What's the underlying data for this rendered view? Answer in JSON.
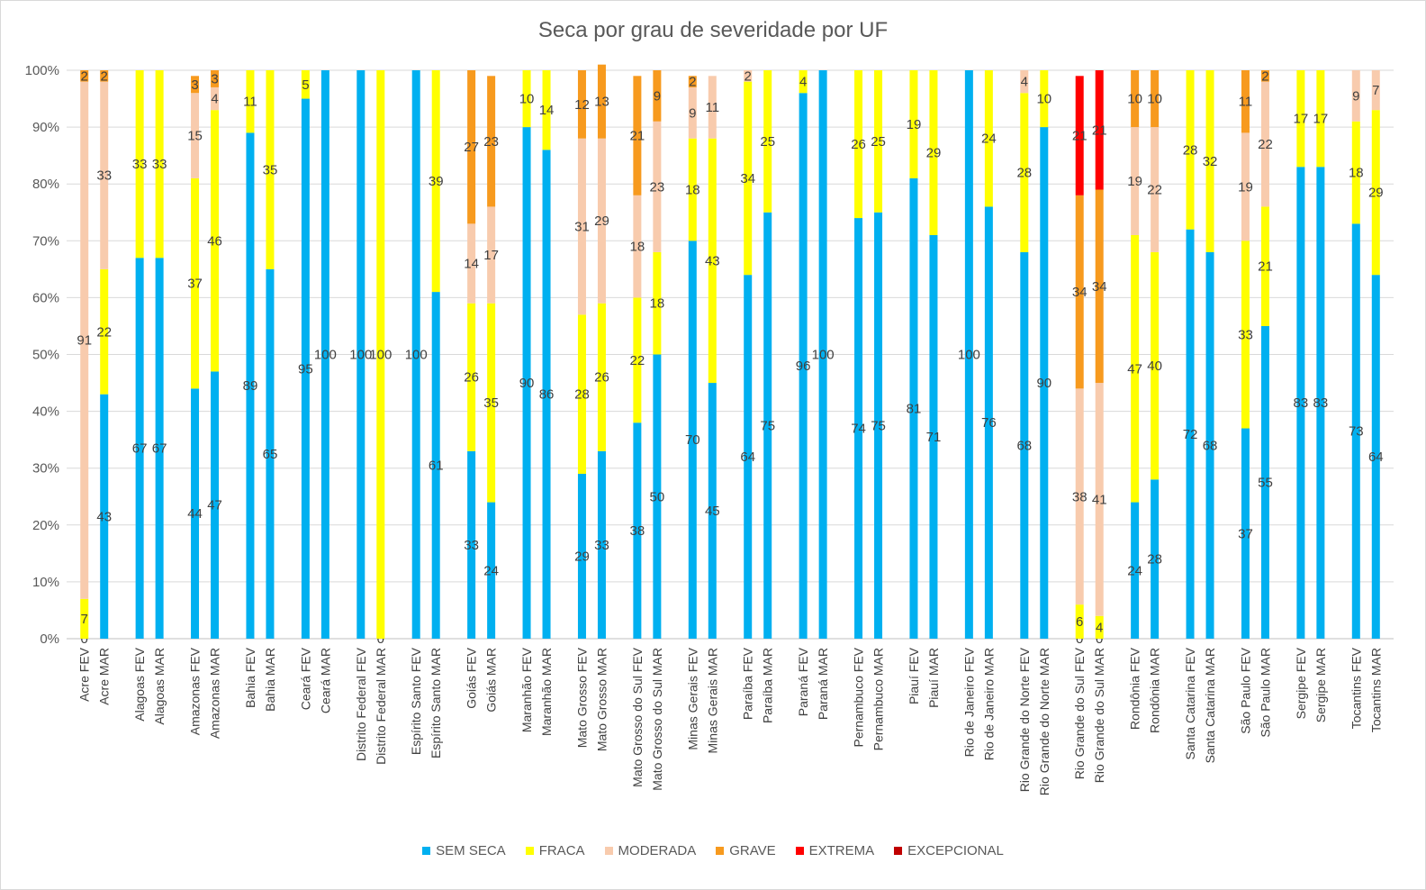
{
  "chart_data": {
    "type": "bar",
    "stacked": true,
    "title": "Seca por grau de severidade por UF",
    "xlabel": "",
    "ylabel": "",
    "ylim": [
      0,
      100
    ],
    "y_ticks": [
      "0%",
      "10%",
      "20%",
      "30%",
      "40%",
      "50%",
      "60%",
      "70%",
      "80%",
      "90%",
      "100%"
    ],
    "grid": true,
    "legend_position": "bottom",
    "categories": [
      "Acre FEV",
      "Acre MAR",
      "Alagoas FEV",
      "Alagoas MAR",
      "Amazonas FEV",
      "Amazonas MAR",
      "Bahia FEV",
      "Bahia MAR",
      "Ceará FEV",
      "Ceará MAR",
      "Distrito Federal FEV",
      "Distrito Federal MAR",
      "Espírito Santo FEV",
      "Espírito Santo MAR",
      "Goiás FEV",
      "Goiás MAR",
      "Maranhão FEV",
      "Maranhão MAR",
      "Mato Grosso FEV",
      "Mato Grosso MAR",
      "Mato Grosso do Sul FEV",
      "Mato Grosso do Sul MAR",
      "Minas Gerais FEV",
      "Minas Gerais MAR",
      "Paraíba FEV",
      "Paraíba MAR",
      "Paraná FEV",
      "Paraná MAR",
      "Pernambuco FEV",
      "Pernambuco MAR",
      "Piauí FEV",
      "Piauí MAR",
      "Rio de Janeiro FEV",
      "Rio de Janeiro MAR",
      "Rio Grande do Norte FEV",
      "Rio Grande do Norte MAR",
      "Rio Grande do Sul FEV",
      "Rio Grande do Sul MAR",
      "Rondônia FEV",
      "Rondônia MAR",
      "Santa Catarina FEV",
      "Santa Catarina MAR",
      "São Paulo FEV",
      "São Paulo MAR",
      "Sergipe FEV",
      "Sergipe MAR",
      "Tocantins FEV",
      "Tocantins MAR"
    ],
    "series": [
      {
        "name": "SEM SECA",
        "color": "#00b0f0",
        "values": [
          0,
          43,
          67,
          67,
          44,
          47,
          89,
          65,
          95,
          100,
          100,
          0,
          100,
          61,
          33,
          24,
          90,
          86,
          29,
          33,
          38,
          50,
          70,
          45,
          64,
          75,
          96,
          100,
          74,
          75,
          81,
          71,
          100,
          76,
          68,
          90,
          0,
          0,
          24,
          28,
          72,
          68,
          37,
          55,
          83,
          83,
          73,
          64
        ]
      },
      {
        "name": "FRACA",
        "color": "#ffff00",
        "values": [
          7,
          22,
          33,
          33,
          37,
          46,
          11,
          35,
          5,
          0,
          0,
          100,
          0,
          39,
          26,
          35,
          10,
          14,
          28,
          26,
          22,
          18,
          18,
          43,
          34,
          25,
          4,
          0,
          26,
          25,
          19,
          29,
          0,
          24,
          28,
          10,
          6,
          4,
          47,
          40,
          28,
          32,
          33,
          21,
          17,
          17,
          18,
          29
        ]
      },
      {
        "name": "MODERADA",
        "color": "#f8cbad",
        "values": [
          91,
          33,
          0,
          0,
          15,
          4,
          0,
          0,
          0,
          0,
          0,
          0,
          0,
          0,
          14,
          17,
          0,
          0,
          31,
          29,
          18,
          23,
          9,
          11,
          2,
          0,
          0,
          0,
          0,
          0,
          0,
          0,
          0,
          0,
          4,
          0,
          38,
          41,
          19,
          22,
          0,
          0,
          19,
          22,
          0,
          0,
          9,
          7
        ]
      },
      {
        "name": "GRAVE",
        "color": "#f79a1e",
        "values": [
          2,
          2,
          0,
          0,
          3,
          3,
          0,
          0,
          0,
          0,
          0,
          0,
          0,
          0,
          27,
          23,
          0,
          0,
          12,
          13,
          21,
          9,
          2,
          0,
          0,
          0,
          0,
          0,
          0,
          0,
          0,
          0,
          0,
          0,
          0,
          0,
          34,
          34,
          10,
          10,
          0,
          0,
          11,
          2,
          0,
          0,
          0,
          0
        ]
      },
      {
        "name": "EXTREMA",
        "color": "#ff0000",
        "values": [
          0,
          0,
          0,
          0,
          0,
          0,
          0,
          0,
          0,
          0,
          0,
          0,
          0,
          0,
          0,
          0,
          0,
          0,
          0,
          0,
          0,
          0,
          0,
          0,
          0,
          0,
          0,
          0,
          0,
          0,
          0,
          0,
          0,
          0,
          0,
          0,
          21,
          21,
          0,
          0,
          0,
          0,
          0,
          0,
          0,
          0,
          0,
          0
        ]
      },
      {
        "name": "EXCEPCIONAL",
        "color": "#c00000",
        "values": [
          0,
          0,
          0,
          0,
          0,
          0,
          0,
          0,
          0,
          0,
          0,
          0,
          0,
          0,
          0,
          0,
          0,
          0,
          0,
          0,
          0,
          0,
          0,
          0,
          0,
          0,
          0,
          0,
          0,
          0,
          0,
          0,
          0,
          0,
          0,
          0,
          0,
          0,
          0,
          0,
          0,
          0,
          0,
          0,
          0,
          0,
          0,
          0
        ]
      }
    ]
  }
}
